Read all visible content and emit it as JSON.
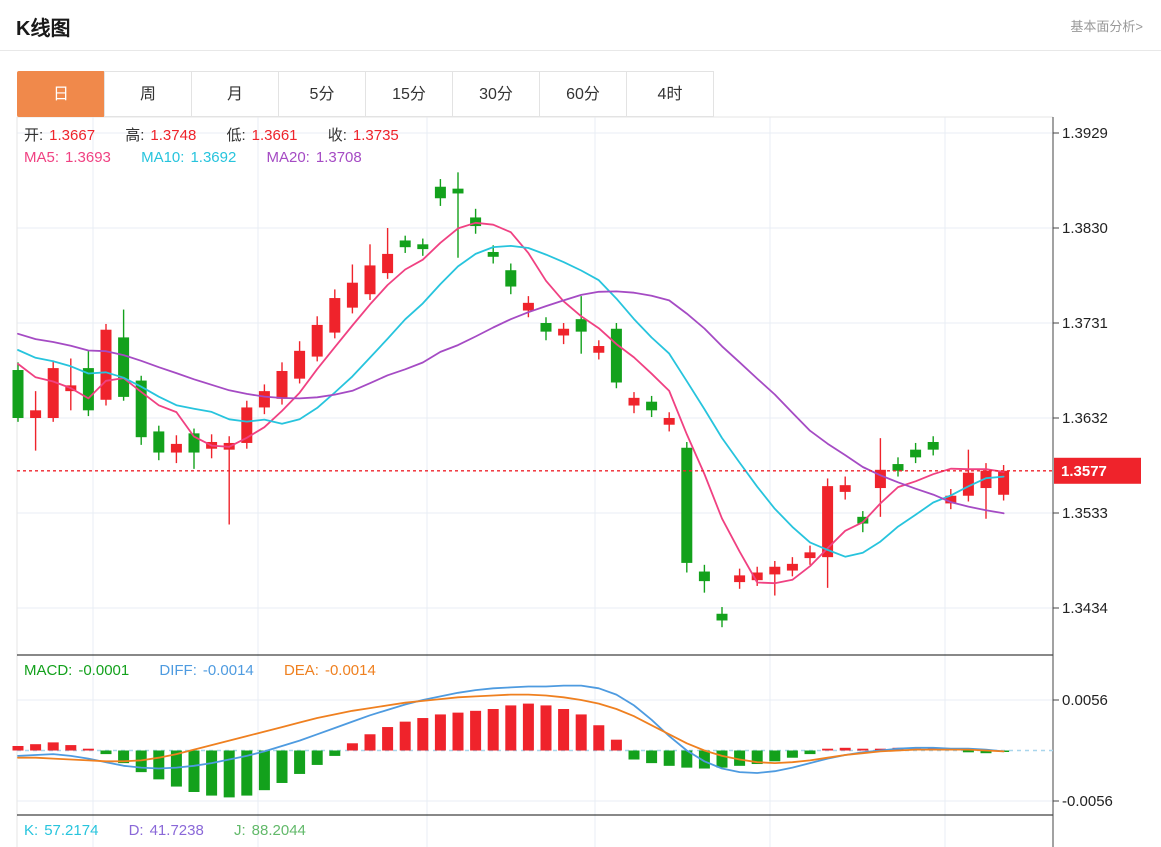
{
  "header": {
    "title": "K线图",
    "link": "基本面分析>"
  },
  "tabs": {
    "items": [
      {
        "label": "日",
        "selected": true
      },
      {
        "label": "周",
        "selected": false
      },
      {
        "label": "月",
        "selected": false
      },
      {
        "label": "5分",
        "selected": false
      },
      {
        "label": "15分",
        "selected": false
      },
      {
        "label": "30分",
        "selected": false
      },
      {
        "label": "60分",
        "selected": false
      },
      {
        "label": "4时",
        "selected": false
      }
    ]
  },
  "legend": {
    "open_label": "开:",
    "open": "1.3667",
    "high_label": "高:",
    "high": "1.3748",
    "low_label": "低:",
    "low": "1.3661",
    "close_label": "收:",
    "close": "1.3735",
    "ma5_label": "MA5:",
    "ma5": "1.3693",
    "ma10_label": "MA10:",
    "ma10": "1.3692",
    "ma20_label": "MA20:",
    "ma20": "1.3708"
  },
  "macd_legend": {
    "macd_label": "MACD:",
    "macd": "-0.0001",
    "diff_label": "DIFF:",
    "diff": "-0.0014",
    "dea_label": "DEA:",
    "dea": "-0.0014"
  },
  "kdj_legend": {
    "k_label": "K:",
    "k": "57.2174",
    "d_label": "D:",
    "d": "41.7238",
    "j_label": "J:",
    "j": "88.2044"
  },
  "colors": {
    "up": "#ef232b",
    "down": "#13a11c",
    "ma5": "#f04182",
    "ma10": "#27c4dd",
    "ma20": "#a54bc4",
    "diff": "#4e9be0",
    "dea": "#ef8020",
    "kdj_k": "#27c4dd",
    "kdj_d": "#8a68d8",
    "kdj_j": "#62b96a",
    "tab_selected": "#f0894b",
    "badge": "#ef232b",
    "grid": "#e9eef4",
    "zero_dash": "#a9d6ec",
    "border_light": "#e6e6e6",
    "border_dark": "#111111",
    "axis_text": "#222222"
  },
  "chart_data": {
    "type": "candlestick",
    "title": "K线图",
    "legend_position": "top-left",
    "grid": true,
    "y_ticks": [
      "1.3929",
      "1.3830",
      "1.3731",
      "1.3632",
      "1.3533",
      "1.3434"
    ],
    "last_price": "1.3577",
    "candles_format": "[open, close, low, high] per bar, left to right",
    "candles": [
      [
        1.3682,
        1.3632,
        1.3628,
        1.369
      ],
      [
        1.3632,
        1.364,
        1.3598,
        1.366
      ],
      [
        1.3632,
        1.3684,
        1.3628,
        1.3692
      ],
      [
        1.366,
        1.3666,
        1.364,
        1.3694
      ],
      [
        1.3684,
        1.364,
        1.3634,
        1.3702
      ],
      [
        1.3651,
        1.3724,
        1.3645,
        1.373
      ],
      [
        1.3716,
        1.3654,
        1.365,
        1.3745
      ],
      [
        1.3671,
        1.3612,
        1.3604,
        1.3676
      ],
      [
        1.3618,
        1.3596,
        1.3588,
        1.3624
      ],
      [
        1.3596,
        1.3605,
        1.3585,
        1.3614
      ],
      [
        1.3616,
        1.3596,
        1.3579,
        1.3621
      ],
      [
        1.36,
        1.3607,
        1.359,
        1.3615
      ],
      [
        1.3599,
        1.3606,
        1.3521,
        1.3613
      ],
      [
        1.3606,
        1.3643,
        1.36,
        1.365
      ],
      [
        1.3643,
        1.366,
        1.3636,
        1.3667
      ],
      [
        1.3652,
        1.3681,
        1.3646,
        1.369
      ],
      [
        1.3673,
        1.3702,
        1.3668,
        1.3712
      ],
      [
        1.3696,
        1.3729,
        1.3691,
        1.3738
      ],
      [
        1.3721,
        1.3757,
        1.3715,
        1.3766
      ],
      [
        1.3747,
        1.3773,
        1.3741,
        1.3792
      ],
      [
        1.3761,
        1.3791,
        1.3755,
        1.3813
      ],
      [
        1.3783,
        1.3803,
        1.3777,
        1.383
      ],
      [
        1.3817,
        1.381,
        1.3804,
        1.3822
      ],
      [
        1.3813,
        1.3808,
        1.3801,
        1.3819
      ],
      [
        1.3873,
        1.3861,
        1.3853,
        1.3881
      ],
      [
        1.3871,
        1.3866,
        1.3799,
        1.3888
      ],
      [
        1.3841,
        1.3832,
        1.3824,
        1.385
      ],
      [
        1.3805,
        1.38,
        1.3793,
        1.3812
      ],
      [
        1.3786,
        1.3769,
        1.3761,
        1.3793
      ],
      [
        1.3744,
        1.3752,
        1.3737,
        1.3759
      ],
      [
        1.3731,
        1.3722,
        1.3713,
        1.3737
      ],
      [
        1.3718,
        1.3725,
        1.3709,
        1.3731
      ],
      [
        1.3735,
        1.3722,
        1.3699,
        1.3759
      ],
      [
        1.37,
        1.3707,
        1.3693,
        1.3713
      ],
      [
        1.3725,
        1.3669,
        1.3663,
        1.3731
      ],
      [
        1.3645,
        1.3653,
        1.3637,
        1.3659
      ],
      [
        1.3649,
        1.364,
        1.3633,
        1.3655
      ],
      [
        1.3625,
        1.3632,
        1.3618,
        1.3638
      ],
      [
        1.3601,
        1.3481,
        1.3471,
        1.3607
      ],
      [
        1.3472,
        1.3462,
        1.345,
        1.3479
      ],
      [
        1.3428,
        1.3421,
        1.3414,
        1.3435
      ],
      [
        1.3461,
        1.3468,
        1.3454,
        1.3475
      ],
      [
        1.3463,
        1.3471,
        1.3457,
        1.3477
      ],
      [
        1.3469,
        1.3477,
        1.3447,
        1.3483
      ],
      [
        1.3473,
        1.348,
        1.3467,
        1.3487
      ],
      [
        1.3486,
        1.3492,
        1.3479,
        1.3499
      ],
      [
        1.3487,
        1.3561,
        1.3455,
        1.3569
      ],
      [
        1.3555,
        1.3562,
        1.3547,
        1.3571
      ],
      [
        1.3529,
        1.3522,
        1.3513,
        1.3535
      ],
      [
        1.3559,
        1.3578,
        1.3529,
        1.3611
      ],
      [
        1.3584,
        1.3577,
        1.3571,
        1.3591
      ],
      [
        1.3599,
        1.3591,
        1.3585,
        1.3606
      ],
      [
        1.3607,
        1.3599,
        1.3593,
        1.3613
      ],
      [
        1.3543,
        1.3551,
        1.3537,
        1.3558
      ],
      [
        1.3551,
        1.3575,
        1.3545,
        1.3599
      ],
      [
        1.3559,
        1.3577,
        1.3527,
        1.3585
      ],
      [
        1.3552,
        1.3577,
        1.3546,
        1.3583
      ]
    ],
    "ma_periods": [
      5,
      10,
      20
    ],
    "ma_prehistory": [
      1.3755,
      1.375,
      1.3745,
      1.3742,
      1.374,
      1.3738,
      1.3735,
      1.3732,
      1.373,
      1.3728,
      1.3725,
      1.3722,
      1.372,
      1.3718,
      1.3715,
      1.3712,
      1.371,
      1.3706,
      1.37,
      1.3694
    ],
    "macd": {
      "y_ticks": [
        "0.0056",
        "-0.0056"
      ],
      "hist": [
        0.0005,
        0.0007,
        0.0009,
        0.0006,
        0.0002,
        -0.0004,
        -0.0014,
        -0.0024,
        -0.0032,
        -0.004,
        -0.0046,
        -0.005,
        -0.0052,
        -0.005,
        -0.0044,
        -0.0036,
        -0.0026,
        -0.0016,
        -0.0006,
        0.0008,
        0.0018,
        0.0026,
        0.0032,
        0.0036,
        0.004,
        0.0042,
        0.0044,
        0.0046,
        0.005,
        0.0052,
        0.005,
        0.0046,
        0.004,
        0.0028,
        0.0012,
        -0.001,
        -0.0014,
        -0.0017,
        -0.0019,
        -0.002,
        -0.0019,
        -0.0017,
        -0.0015,
        -0.0012,
        -0.0008,
        -0.0004,
        0.0002,
        0.0003,
        0.0002,
        0.0002,
        0.0003,
        0.0002,
        0.0003,
        0.0002,
        -0.0002,
        -0.0003,
        -0.0001
      ],
      "diff": [
        -0.0006,
        -0.0005,
        -0.0004,
        -0.0006,
        -0.0009,
        -0.0013,
        -0.0017,
        -0.0019,
        -0.002,
        -0.0019,
        -0.0017,
        -0.0014,
        -0.001,
        -0.0006,
        -0.0001,
        0.0005,
        0.0011,
        0.0018,
        0.0025,
        0.0032,
        0.0039,
        0.0045,
        0.0051,
        0.0056,
        0.006,
        0.0064,
        0.0067,
        0.0069,
        0.007,
        0.0071,
        0.0071,
        0.0072,
        0.0072,
        0.0069,
        0.0062,
        0.005,
        0.0034,
        0.0016,
        0.0,
        -0.0012,
        -0.002,
        -0.0024,
        -0.0025,
        -0.0023,
        -0.0019,
        -0.0014,
        -0.0009,
        -0.0005,
        -0.0002,
        0.0,
        0.0002,
        0.0003,
        0.0003,
        0.0002,
        0.0002,
        0.0001,
        -0.0001
      ],
      "dea": [
        -0.0008,
        -0.0008,
        -0.0009,
        -0.001,
        -0.0011,
        -0.0012,
        -0.0012,
        -0.0011,
        -0.0008,
        -0.0004,
        0.0001,
        0.0006,
        0.0011,
        0.0016,
        0.0021,
        0.0026,
        0.0031,
        0.0036,
        0.004,
        0.0044,
        0.0047,
        0.005,
        0.0053,
        0.0055,
        0.0057,
        0.0059,
        0.006,
        0.0061,
        0.0062,
        0.0062,
        0.0061,
        0.0059,
        0.0056,
        0.0052,
        0.0046,
        0.0038,
        0.0028,
        0.0018,
        0.0008,
        0.0,
        -0.0006,
        -0.001,
        -0.0013,
        -0.0014,
        -0.0013,
        -0.0011,
        -0.0008,
        -0.0005,
        -0.0003,
        -0.0001,
        0.0,
        0.0001,
        0.0001,
        0.0001,
        0.0001,
        0.0,
        -0.0001
      ]
    },
    "kdj": {
      "k": "57.2174",
      "d": "41.7238",
      "j": "88.2044"
    }
  }
}
